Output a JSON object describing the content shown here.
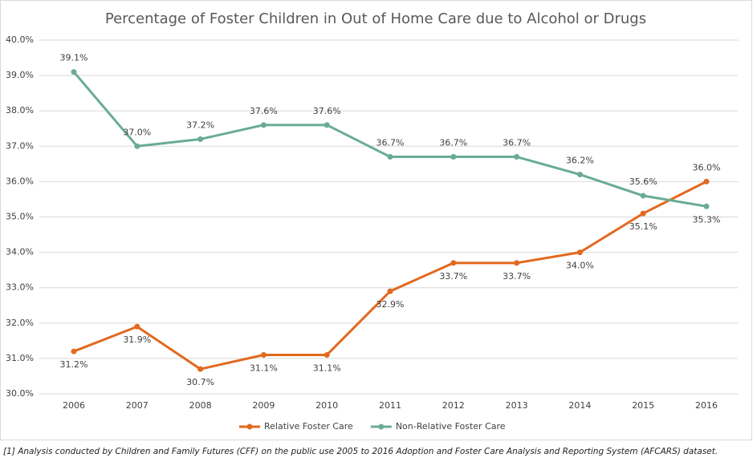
{
  "chart_data": {
    "type": "line",
    "title": "Percentage of Foster Children in Out of Home Care due to Alcohol or Drugs",
    "categories": [
      "2006",
      "2007",
      "2008",
      "2009",
      "2010",
      "2011",
      "2012",
      "2013",
      "2014",
      "2015",
      "2016"
    ],
    "series": [
      {
        "name": "Relative Foster Care",
        "color": "#e2691f",
        "values": [
          31.2,
          31.9,
          30.7,
          31.1,
          31.1,
          32.9,
          33.7,
          33.7,
          34.0,
          35.1,
          36.0
        ],
        "value_labels": [
          "31.2%",
          "31.9%",
          "30.7%",
          "31.1%",
          "31.1%",
          "32.9%",
          "33.7%",
          "33.7%",
          "34.0%",
          "35.1%",
          "36.0%"
        ]
      },
      {
        "name": "Non-Relative Foster Care",
        "color": "#6aab96",
        "values": [
          39.1,
          37.0,
          37.2,
          37.6,
          37.6,
          36.7,
          36.7,
          36.7,
          36.2,
          35.6,
          35.3
        ],
        "value_labels": [
          "39.1%",
          "37.0%",
          "37.2%",
          "37.6%",
          "37.6%",
          "36.7%",
          "36.7%",
          "36.7%",
          "36.2%",
          "35.6%",
          "35.3%"
        ]
      }
    ],
    "ylim": [
      30,
      40
    ],
    "yticks": [
      {
        "value": 30,
        "label": "30.0%"
      },
      {
        "value": 31,
        "label": "31.0%"
      },
      {
        "value": 32,
        "label": "32.0%"
      },
      {
        "value": 33,
        "label": "33.0%"
      },
      {
        "value": 34,
        "label": "34.0%"
      },
      {
        "value": 35,
        "label": "35.0%"
      },
      {
        "value": 36,
        "label": "36.0%"
      },
      {
        "value": 37,
        "label": "37.0%"
      },
      {
        "value": 38,
        "label": "38.0%"
      },
      {
        "value": 39,
        "label": "39.0%"
      },
      {
        "value": 40,
        "label": "40.0%"
      }
    ],
    "grid": true,
    "legend": "bottom",
    "footnote": "[1] Analysis conducted by Children and Family Futures (CFF) on the public use 2005 to 2016 Adoption and Foster Care Analysis and Reporting System (AFCARS) dataset."
  }
}
